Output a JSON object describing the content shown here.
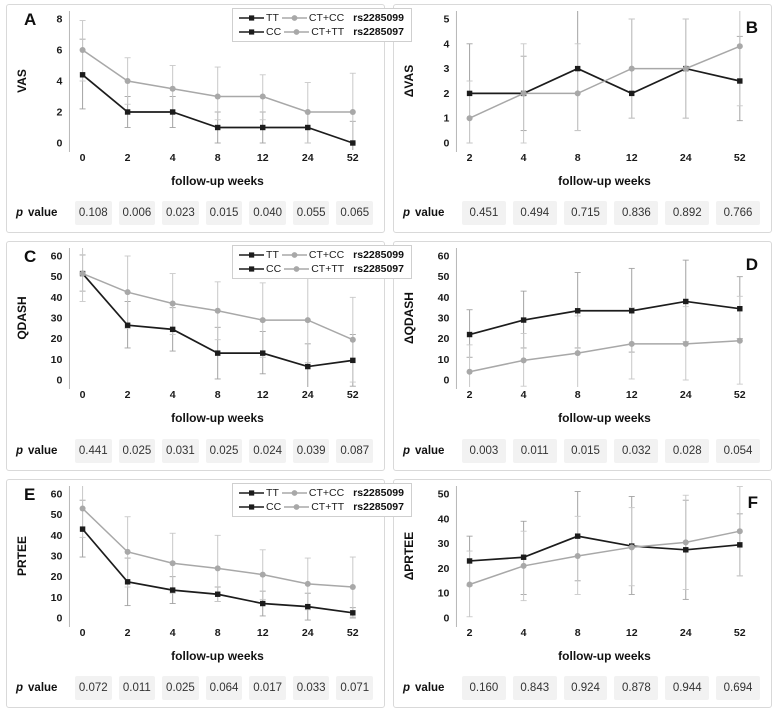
{
  "figure": {
    "xlabel": "follow-up weeks",
    "p_label": {
      "p": "p",
      "value": "value"
    },
    "legend": {
      "rows": [
        {
          "items": [
            {
              "series": "dark",
              "marker": "square",
              "label": "TT"
            },
            {
              "series": "light",
              "marker": "circle",
              "label": "CT+CC"
            }
          ],
          "rs": "rs2285099"
        },
        {
          "items": [
            {
              "series": "dark",
              "marker": "square",
              "label": "CC"
            },
            {
              "series": "light",
              "marker": "circle",
              "label": "CT+TT"
            }
          ],
          "rs": "rs2285097"
        }
      ]
    },
    "colors": {
      "dark": "#1c1c1c",
      "light": "#a8a8a8",
      "err_dark": "#a3a3a3",
      "err_light": "#c9c9c9",
      "axis": "#b8b8b8",
      "pcell_bg": "#f2f2f2",
      "panel_border": "#d9d9d9"
    }
  },
  "chart_data": [
    {
      "type": "line",
      "panel": "A",
      "label_pos": "left",
      "legend": true,
      "title": "",
      "ylabel": "VAS",
      "xlabel": "follow-up weeks",
      "x": [
        "0",
        "2",
        "4",
        "8",
        "12",
        "24",
        "52"
      ],
      "ylim": [
        0,
        8
      ],
      "ytick": 2,
      "grid": false,
      "series": [
        {
          "name": "TT (rs2285099) / CC (rs2285097)",
          "style": "dark",
          "marker": "square",
          "values": [
            4.4,
            2,
            2,
            1,
            1,
            1,
            0
          ],
          "err_lo": [
            2.2,
            1,
            1,
            0,
            0,
            0,
            -0.6
          ],
          "err_hi": [
            6.7,
            3,
            3,
            2,
            2,
            2,
            1.4
          ]
        },
        {
          "name": "CT+CC (rs2285099) / CT+TT (rs2285097)",
          "style": "light",
          "marker": "circle",
          "values": [
            6,
            4,
            3.5,
            3,
            3,
            2,
            2
          ],
          "err_lo": [
            4,
            2.5,
            2,
            1.5,
            1.5,
            0,
            0
          ],
          "err_hi": [
            7.9,
            5.5,
            5,
            4.9,
            4.4,
            3.9,
            4.5
          ]
        }
      ],
      "p_values": [
        "0.108",
        "0.006",
        "0.023",
        "0.015",
        "0.040",
        "0.055",
        "0.065"
      ]
    },
    {
      "type": "line",
      "panel": "B",
      "label_pos": "right",
      "legend": false,
      "title": "",
      "ylabel": "ΔVAS",
      "xlabel": "follow-up weeks",
      "x": [
        "2",
        "4",
        "8",
        "12",
        "24",
        "52"
      ],
      "ylim": [
        0,
        5
      ],
      "ytick": 1,
      "grid": false,
      "series": [
        {
          "name": "TT (rs2285099) / CC (rs2285097)",
          "style": "dark",
          "marker": "square",
          "values": [
            2,
            2,
            3,
            2,
            3,
            2.5
          ],
          "err_lo": [
            0,
            0.5,
            0.5,
            1,
            1,
            0.9
          ],
          "err_hi": [
            4,
            3.5,
            5.5,
            5,
            5,
            4.3
          ]
        },
        {
          "name": "CT+CC (rs2285099) / CT+TT (rs2285097)",
          "style": "light",
          "marker": "circle",
          "values": [
            1,
            2,
            2,
            3,
            3,
            3.9
          ],
          "err_lo": [
            0,
            0,
            0.5,
            1,
            1,
            1.5
          ],
          "err_hi": [
            2.5,
            4,
            4,
            5,
            5,
            6.2
          ]
        }
      ],
      "p_values": [
        "0.451",
        "0.494",
        "0.715",
        "0.836",
        "0.892",
        "0.766"
      ]
    },
    {
      "type": "line",
      "panel": "C",
      "label_pos": "left",
      "legend": true,
      "title": "",
      "ylabel": "QDASH",
      "xlabel": "follow-up weeks",
      "x": [
        "0",
        "2",
        "4",
        "8",
        "12",
        "24",
        "52"
      ],
      "ylim": [
        0,
        60
      ],
      "ytick": 10,
      "grid": false,
      "series": [
        {
          "name": "TT (rs2285099) / CC (rs2285097)",
          "style": "dark",
          "marker": "square",
          "values": [
            51.5,
            26.5,
            24.5,
            13,
            13,
            6.5,
            9.5
          ],
          "err_lo": [
            43,
            15.5,
            14,
            0.5,
            3,
            -4.5,
            -3
          ],
          "err_hi": [
            60.5,
            38,
            35,
            25.5,
            23.5,
            17.5,
            22
          ]
        },
        {
          "name": "CT+CC (rs2285099) / CT+TT (rs2285097)",
          "style": "light",
          "marker": "circle",
          "values": [
            51.5,
            42.5,
            37,
            33.5,
            29,
            29,
            19.5
          ],
          "err_lo": [
            38,
            25,
            22,
            19.5,
            11,
            8.5,
            -1
          ],
          "err_hi": [
            65.5,
            60,
            51.5,
            47.5,
            47,
            49.5,
            40
          ]
        }
      ],
      "p_values": [
        "0.441",
        "0.025",
        "0.031",
        "0.025",
        "0.024",
        "0.039",
        "0.087"
      ]
    },
    {
      "type": "line",
      "panel": "D",
      "label_pos": "right",
      "legend": false,
      "title": "",
      "ylabel": "ΔQDASH",
      "xlabel": "follow-up weeks",
      "x": [
        "2",
        "4",
        "8",
        "12",
        "24",
        "52"
      ],
      "ylim": [
        0,
        60
      ],
      "ytick": 10,
      "grid": false,
      "series": [
        {
          "name": "TT (rs2285099) / CC (rs2285097)",
          "style": "dark",
          "marker": "square",
          "values": [
            22,
            29,
            33.5,
            33.5,
            38,
            34.5
          ],
          "err_lo": [
            11,
            15.5,
            15.5,
            13.5,
            18.5,
            20
          ],
          "err_hi": [
            34,
            43,
            52,
            54,
            58,
            50
          ]
        },
        {
          "name": "CT+CC (rs2285099) / CT+TT (rs2285097)",
          "style": "light",
          "marker": "circle",
          "values": [
            4,
            9.5,
            13,
            17.5,
            17.5,
            19
          ],
          "err_lo": [
            -8,
            -3,
            -5,
            0.5,
            0,
            -2
          ],
          "err_hi": [
            17,
            22.5,
            31,
            35,
            35.5,
            40.5
          ]
        }
      ],
      "p_values": [
        "0.003",
        "0.011",
        "0.015",
        "0.032",
        "0.028",
        "0.054"
      ]
    },
    {
      "type": "line",
      "panel": "E",
      "label_pos": "left",
      "legend": true,
      "title": "",
      "ylabel": "PRTEE",
      "xlabel": "follow-up weeks",
      "x": [
        "0",
        "2",
        "4",
        "8",
        "12",
        "24",
        "52"
      ],
      "ylim": [
        0,
        60
      ],
      "ytick": 10,
      "grid": false,
      "series": [
        {
          "name": "TT (rs2285099) / CC (rs2285097)",
          "style": "dark",
          "marker": "square",
          "values": [
            43,
            17.5,
            13.5,
            11.5,
            7,
            5.5,
            2.5
          ],
          "err_lo": [
            29.5,
            6,
            7,
            8,
            1,
            -1,
            0
          ],
          "err_hi": [
            57,
            29,
            20,
            15,
            13,
            12,
            5
          ]
        },
        {
          "name": "CT+CC (rs2285099) / CT+TT (rs2285097)",
          "style": "light",
          "marker": "circle",
          "values": [
            53,
            32,
            26.5,
            24,
            21,
            16.5,
            15
          ],
          "err_lo": [
            39,
            15,
            12,
            8,
            9,
            4,
            0.5
          ],
          "err_hi": [
            67,
            49,
            41,
            40,
            33,
            29,
            29.5
          ]
        }
      ],
      "p_values": [
        "0.072",
        "0.011",
        "0.025",
        "0.064",
        "0.017",
        "0.033",
        "0.071"
      ]
    },
    {
      "type": "line",
      "panel": "F",
      "label_pos": "right",
      "legend": false,
      "title": "",
      "ylabel": "ΔPRTEE",
      "xlabel": "follow-up weeks",
      "x": [
        "2",
        "4",
        "8",
        "12",
        "24",
        "52"
      ],
      "ylim": [
        0,
        50
      ],
      "ytick": 10,
      "grid": false,
      "series": [
        {
          "name": "TT (rs2285099) / CC (rs2285097)",
          "style": "dark",
          "marker": "square",
          "values": [
            23,
            24.5,
            33,
            29,
            27.5,
            29.5
          ],
          "err_lo": [
            13,
            9.5,
            15,
            9.5,
            7.5,
            17
          ],
          "err_hi": [
            33,
            39,
            51,
            49,
            47.5,
            42
          ]
        },
        {
          "name": "CT+CC (rs2285099) / CT+TT (rs2285097)",
          "style": "light",
          "marker": "circle",
          "values": [
            13.5,
            21,
            25,
            28.5,
            30.5,
            35
          ],
          "err_lo": [
            0.5,
            7,
            9.5,
            13,
            11.5,
            17
          ],
          "err_hi": [
            27,
            35,
            41,
            44.5,
            49.5,
            53
          ]
        }
      ],
      "p_values": [
        "0.160",
        "0.843",
        "0.924",
        "0.878",
        "0.944",
        "0.694"
      ]
    }
  ]
}
